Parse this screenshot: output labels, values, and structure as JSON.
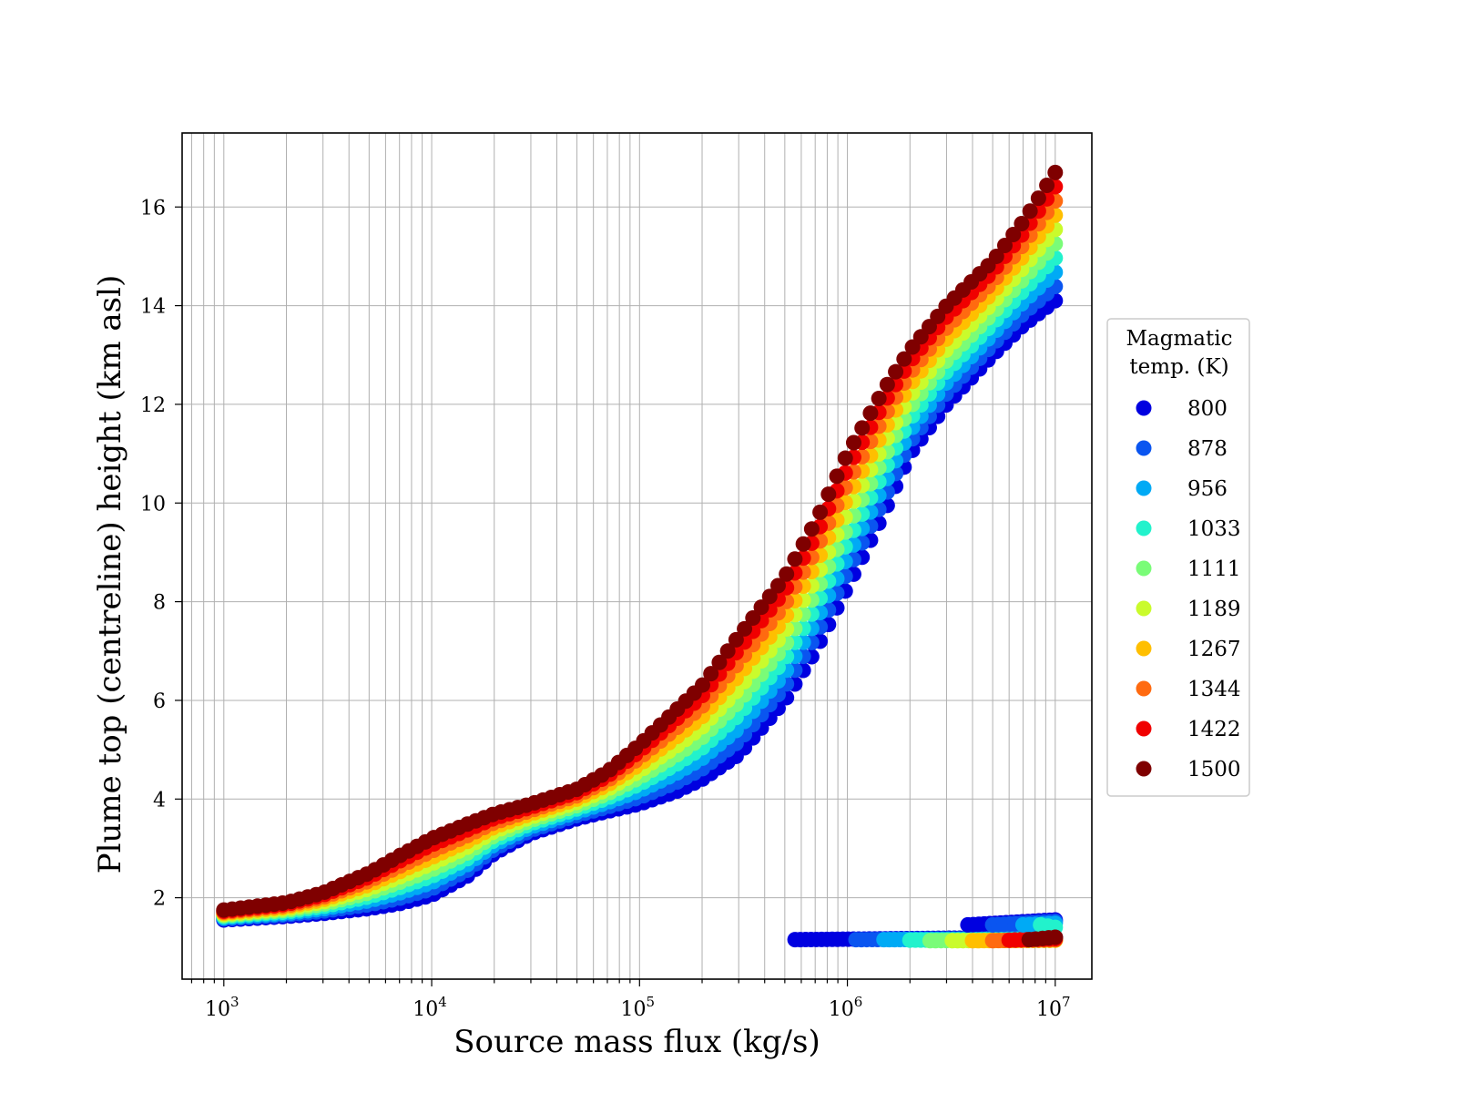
{
  "chart_data": {
    "type": "scatter",
    "title": "",
    "xlabel": "Source mass flux (kg/s)",
    "ylabel": "Plume top (centreline) height (km asl)",
    "x_scale": "log",
    "xlim": [
      630,
      15000000
    ],
    "ylim": [
      0.35,
      17.5
    ],
    "x_ticks": [
      {
        "base": "10",
        "exp": "3",
        "value": 1000
      },
      {
        "base": "10",
        "exp": "4",
        "value": 10000
      },
      {
        "base": "10",
        "exp": "5",
        "value": 100000
      },
      {
        "base": "10",
        "exp": "6",
        "value": 1000000
      },
      {
        "base": "10",
        "exp": "7",
        "value": 10000000
      }
    ],
    "y_ticks": [
      2,
      4,
      6,
      8,
      10,
      12,
      14,
      16
    ],
    "grid": true,
    "legend": {
      "title_lines": [
        "Magmatic",
        "temp. (K)"
      ],
      "placement": "outside-right"
    },
    "series": [
      {
        "name": "800",
        "color": "#0000e0"
      },
      {
        "name": "878",
        "color": "#0a55f0"
      },
      {
        "name": "956",
        "color": "#00aaf5"
      },
      {
        "name": "1033",
        "color": "#22f2cc"
      },
      {
        "name": "1111",
        "color": "#7afc78"
      },
      {
        "name": "1189",
        "color": "#cafb2c"
      },
      {
        "name": "1267",
        "color": "#ffbf00"
      },
      {
        "name": "1344",
        "color": "#ff6a10"
      },
      {
        "name": "1422",
        "color": "#f00000"
      },
      {
        "name": "1500",
        "color": "#7f0000"
      }
    ],
    "curve_x": [
      1000,
      2000,
      3000,
      5000,
      7000,
      10000,
      15000,
      20000,
      30000,
      50000,
      70000,
      100000,
      150000,
      200000,
      300000,
      500000,
      700000,
      1000000,
      1500000,
      2000000,
      3000000,
      5000000,
      7000000,
      10000000
    ],
    "curve_y_low": [
      1.55,
      1.62,
      1.68,
      1.78,
      1.88,
      2.05,
      2.45,
      2.9,
      3.3,
      3.6,
      3.75,
      3.9,
      4.15,
      4.4,
      4.9,
      6.0,
      7.0,
      8.3,
      9.8,
      11.0,
      12.0,
      13.0,
      13.6,
      14.1
    ],
    "curve_y_high": [
      1.75,
      1.9,
      2.1,
      2.5,
      2.85,
      3.2,
      3.5,
      3.7,
      3.9,
      4.2,
      4.55,
      5.1,
      5.8,
      6.3,
      7.3,
      8.5,
      9.6,
      11.0,
      12.3,
      13.1,
      14.0,
      14.9,
      15.7,
      16.7
    ],
    "lower_branch": {
      "x_start": [
        560000,
        1100000,
        1500000,
        2000000,
        2500000,
        3200000,
        4000000,
        5000000,
        6000000,
        7500000
      ],
      "x_end": 10000000,
      "y_start": [
        1.15,
        1.15,
        1.15,
        1.14,
        1.13,
        1.13,
        1.13,
        1.13,
        1.14,
        1.15
      ],
      "y_end": [
        1.2,
        1.18,
        1.17,
        1.15,
        1.14,
        1.14,
        1.14,
        1.15,
        1.17,
        1.2
      ],
      "upper_x_start": [
        3800000,
        5000000,
        7000000,
        8500000
      ],
      "upper_y_start": [
        1.45,
        1.45,
        1.45,
        1.45
      ],
      "upper_y_end": [
        1.55,
        1.52,
        1.48,
        1.4
      ],
      "upper_series_index": [
        0,
        1,
        2,
        3
      ]
    }
  }
}
